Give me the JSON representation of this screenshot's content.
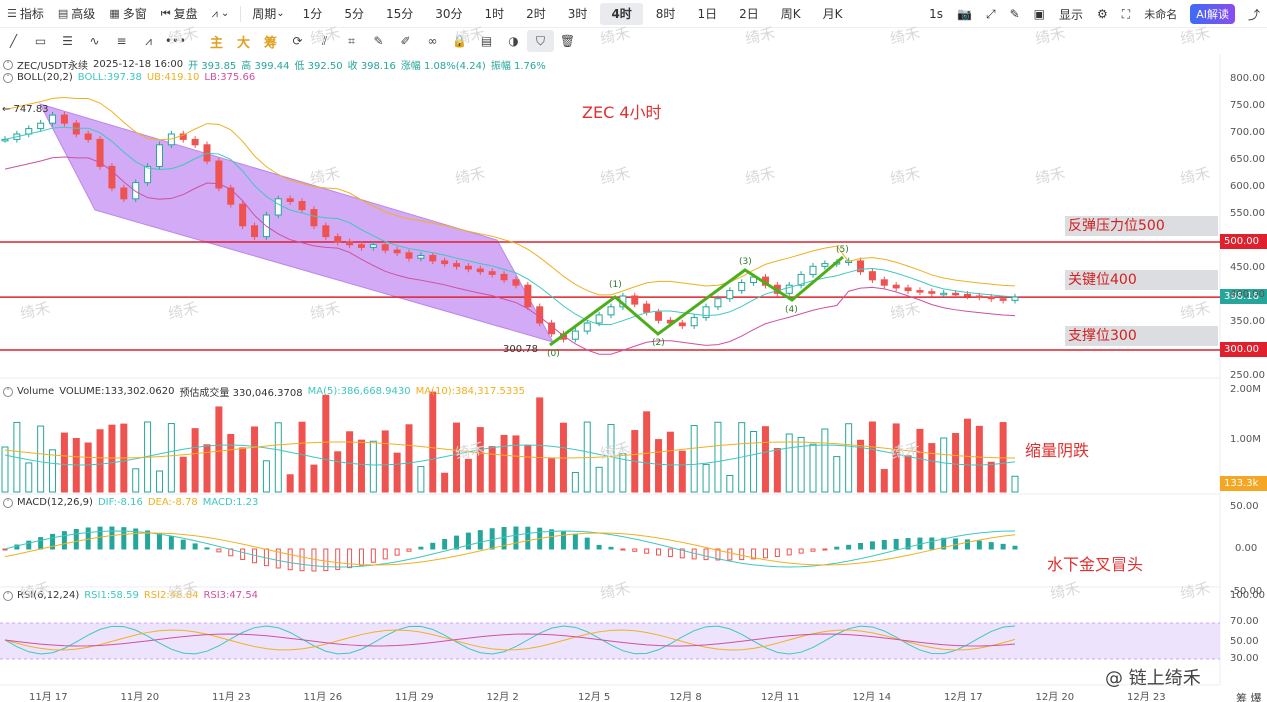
{
  "toolbar": {
    "items": [
      {
        "icon": "list-icon",
        "label": "指标"
      },
      {
        "icon": "grid-icon",
        "label": "高级"
      },
      {
        "icon": "multi-window-icon",
        "label": "多窗"
      },
      {
        "icon": "replay-icon",
        "label": "复盘"
      },
      {
        "icon": "chart-type-icon",
        "label": ""
      }
    ],
    "period_label": "周期",
    "periods": [
      "1分",
      "5分",
      "15分",
      "30分",
      "1时",
      "2时",
      "3时",
      "4时",
      "8时",
      "1日",
      "2日",
      "周K",
      "月K"
    ],
    "active_period": "4时",
    "right_items": {
      "interval": "1s",
      "display": "显示",
      "account": "未命名",
      "ai": "AI解读"
    }
  },
  "drawtools": {
    "items": [
      "line-tool-icon",
      "rect-tool-icon",
      "lines-tool-icon",
      "wave-tool-icon",
      "fib-tool-icon",
      "pattern-tool-icon",
      "more-tools-icon"
    ],
    "text_items": [
      "主",
      "大",
      "筹"
    ],
    "icons2": [
      "edit-chart-icon",
      "ruler-icon",
      "crop-icon",
      "pen-icon",
      "brush-icon",
      "link-icon",
      "lock-icon",
      "note-icon",
      "magnet-icon",
      "filter-icon",
      "trash-icon"
    ]
  },
  "ohlc": {
    "symbol": "ZEC/USDT永续",
    "datetime": "2025-12-18 16:00",
    "open": "开 393.85",
    "high": "高 399.44",
    "low": "低 392.50",
    "close": "收 398.16",
    "change": "涨幅 1.08%(4.24)",
    "amplitude": "振幅 1.76%"
  },
  "boll": {
    "name": "BOLL(20,2)",
    "mid": "BOLL:397.38",
    "ub": "UB:419.10",
    "lb": "LB:375.66"
  },
  "volume": {
    "name": "Volume",
    "vol": "VOLUME:133,302.0620",
    "est": "预估成交量 330,046.3708",
    "ma5": "MA(5):386,668.9430",
    "ma10": "MA(10):384,317.5335"
  },
  "macd": {
    "name": "MACD(12,26,9)",
    "dif": "DIF:-8.16",
    "dea": "DEA:-8.78",
    "macd": "MACD:1.23"
  },
  "rsi": {
    "name": "RSI(6,12,24)",
    "rsi1": "RSI1:58.59",
    "rsi2": "RSI2:48.84",
    "rsi3": "RSI3:47.54"
  },
  "annotations": {
    "title": "ZEC 4小时",
    "resistance": "反弹压力位500",
    "key": "关键位400",
    "support": "支撑位300",
    "volume_note": "缩量阴跌",
    "macd_note": "水下金叉冒头",
    "high_mark": "747.83",
    "low_mark": "300.78",
    "waves": [
      "(0)",
      "(1)",
      "(2)",
      "(3)",
      "(4)",
      "(5)"
    ]
  },
  "price_axis": [
    "800.00",
    "750.00",
    "700.00",
    "650.00",
    "600.00",
    "550.00",
    "450.00",
    "400.00",
    "350.00",
    "250.00"
  ],
  "price_tags": {
    "resistance": "500.00",
    "current": "398.16",
    "support": "300.00"
  },
  "volume_axis": [
    "2.00M",
    "1.00M"
  ],
  "volume_tag": "133.3k",
  "macd_axis": [
    "50.00",
    "0.00",
    "-50.00"
  ],
  "rsi_axis": [
    "100.00",
    "70.00",
    "50.00",
    "30.00"
  ],
  "x_axis": [
    "11月 17",
    "11月 20",
    "11月 23",
    "11月 26",
    "11月 29",
    "12月 2",
    "12月 5",
    "12月 8",
    "12月 11",
    "12月 14",
    "12月 17",
    "12月 20",
    "12月 23"
  ],
  "watermark": "绮禾",
  "logo": "@ 链上绮禾",
  "bottom_right": "筹 爆",
  "colors": {
    "up": "#26a69a",
    "down": "#ef5350",
    "level": "#e0202c",
    "channel": "#b678f0",
    "wave": "#4caf1a",
    "boll_ub": "#f0b020",
    "boll_mid": "#3ec7c0",
    "boll_lb": "#d050a0"
  }
}
